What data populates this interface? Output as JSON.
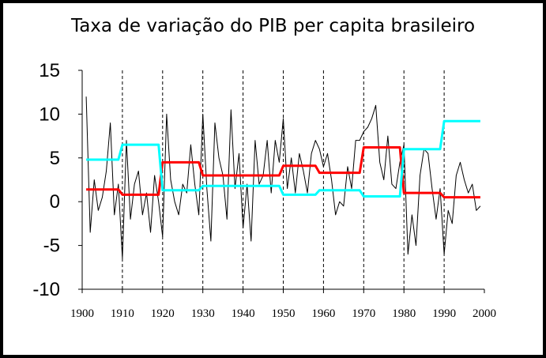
{
  "chart_data": {
    "type": "line",
    "title": "Taxa de variação do PIB per capita brasileiro",
    "xlabel": "",
    "ylabel": "",
    "xlim": [
      1900,
      2000
    ],
    "ylim": [
      -10,
      15
    ],
    "x_ticks": [
      "1900",
      "1910",
      "1920",
      "1930",
      "1940",
      "1950",
      "1960",
      "1970",
      "1980",
      "1990",
      "2000"
    ],
    "y_ticks": [
      "15",
      "10",
      "5",
      "0",
      "-5",
      "-10"
    ],
    "decade_dividers": [
      1910,
      1920,
      1930,
      1940,
      1950,
      1960,
      1970,
      1980,
      1990
    ],
    "grid": false,
    "legend": "none",
    "series": [
      {
        "type": "line",
        "color": "#000000",
        "points": [
          [
            1901,
            12
          ],
          [
            1902,
            -3.5
          ],
          [
            1903,
            2.5
          ],
          [
            1904,
            -1
          ],
          [
            1905,
            0.5
          ],
          [
            1906,
            3.5
          ],
          [
            1907,
            9
          ],
          [
            1908,
            -1.5
          ],
          [
            1909,
            2
          ],
          [
            1910,
            -6.5
          ],
          [
            1911,
            7
          ],
          [
            1912,
            -2
          ],
          [
            1913,
            2
          ],
          [
            1914,
            3.5
          ],
          [
            1915,
            -1.5
          ],
          [
            1916,
            1
          ],
          [
            1917,
            -3.5
          ],
          [
            1918,
            3
          ],
          [
            1919,
            0
          ],
          [
            1920,
            -4
          ],
          [
            1921,
            10
          ],
          [
            1922,
            2.5
          ],
          [
            1923,
            0
          ],
          [
            1924,
            -1.5
          ],
          [
            1925,
            2
          ],
          [
            1926,
            1
          ],
          [
            1927,
            6.5
          ],
          [
            1928,
            2
          ],
          [
            1929,
            -1.5
          ],
          [
            1930,
            10
          ],
          [
            1931,
            1.5
          ],
          [
            1932,
            -4.5
          ],
          [
            1933,
            9
          ],
          [
            1934,
            5
          ],
          [
            1935,
            3
          ],
          [
            1936,
            -2
          ],
          [
            1937,
            10.5
          ],
          [
            1938,
            1.5
          ],
          [
            1939,
            5.5
          ],
          [
            1940,
            -3
          ],
          [
            1941,
            2
          ],
          [
            1942,
            -4.5
          ],
          [
            1943,
            7
          ],
          [
            1944,
            2
          ],
          [
            1945,
            3
          ],
          [
            1946,
            7
          ],
          [
            1947,
            1
          ],
          [
            1948,
            7
          ],
          [
            1949,
            4.5
          ],
          [
            1950,
            9.5
          ],
          [
            1951,
            1.5
          ],
          [
            1952,
            5
          ],
          [
            1953,
            1
          ],
          [
            1954,
            5.5
          ],
          [
            1955,
            3.5
          ],
          [
            1956,
            1
          ],
          [
            1957,
            5.5
          ],
          [
            1958,
            7
          ],
          [
            1959,
            6
          ],
          [
            1960,
            4
          ],
          [
            1961,
            5.5
          ],
          [
            1962,
            2.5
          ],
          [
            1963,
            -1.5
          ],
          [
            1964,
            0
          ],
          [
            1965,
            -0.5
          ],
          [
            1966,
            4
          ],
          [
            1967,
            1.5
          ],
          [
            1968,
            7
          ],
          [
            1969,
            7
          ],
          [
            1970,
            8
          ],
          [
            1971,
            8.5
          ],
          [
            1972,
            9.5
          ],
          [
            1973,
            11
          ],
          [
            1974,
            4.5
          ],
          [
            1975,
            2.5
          ],
          [
            1976,
            7.5
          ],
          [
            1977,
            2
          ],
          [
            1978,
            1.5
          ],
          [
            1979,
            4.5
          ],
          [
            1980,
            6.5
          ],
          [
            1981,
            -6
          ],
          [
            1982,
            -1.5
          ],
          [
            1983,
            -5
          ],
          [
            1984,
            3
          ],
          [
            1985,
            6
          ],
          [
            1986,
            5.5
          ],
          [
            1987,
            1.5
          ],
          [
            1988,
            -2
          ],
          [
            1989,
            1.5
          ],
          [
            1990,
            -6
          ],
          [
            1991,
            -1
          ],
          [
            1992,
            -2.5
          ],
          [
            1993,
            3
          ],
          [
            1994,
            4.5
          ],
          [
            1995,
            2.5
          ],
          [
            1996,
            1
          ],
          [
            1997,
            2
          ],
          [
            1998,
            -1
          ],
          [
            1999,
            -0.5
          ]
        ]
      },
      {
        "type": "step",
        "color": "#ff0000",
        "points": [
          [
            1901,
            1.4
          ],
          [
            1909,
            1.4
          ],
          [
            1910,
            0.8
          ],
          [
            1919,
            0.8
          ],
          [
            1920,
            4.5
          ],
          [
            1929,
            4.5
          ],
          [
            1930,
            3.0
          ],
          [
            1948,
            3.0
          ],
          [
            1949,
            3.0
          ],
          [
            1950,
            4.1
          ],
          [
            1958,
            4.1
          ],
          [
            1959,
            3.3
          ],
          [
            1969,
            3.3
          ],
          [
            1970,
            6.2
          ],
          [
            1979,
            6.2
          ],
          [
            1980,
            1.0
          ],
          [
            1989,
            1.0
          ],
          [
            1990,
            0.5
          ],
          [
            1999,
            0.5
          ]
        ]
      },
      {
        "type": "step",
        "color": "#00ffff",
        "points": [
          [
            1901,
            4.8
          ],
          [
            1909,
            4.8
          ],
          [
            1910,
            6.5
          ],
          [
            1919,
            6.5
          ],
          [
            1920,
            1.3
          ],
          [
            1929,
            1.3
          ],
          [
            1930,
            1.8
          ],
          [
            1948,
            1.8
          ],
          [
            1949,
            1.8
          ],
          [
            1950,
            0.8
          ],
          [
            1958,
            0.8
          ],
          [
            1959,
            1.3
          ],
          [
            1969,
            1.3
          ],
          [
            1970,
            0.6
          ],
          [
            1979,
            0.6
          ],
          [
            1980,
            6.0
          ],
          [
            1989,
            6.0
          ],
          [
            1990,
            9.2
          ],
          [
            1999,
            9.2
          ]
        ]
      }
    ]
  }
}
